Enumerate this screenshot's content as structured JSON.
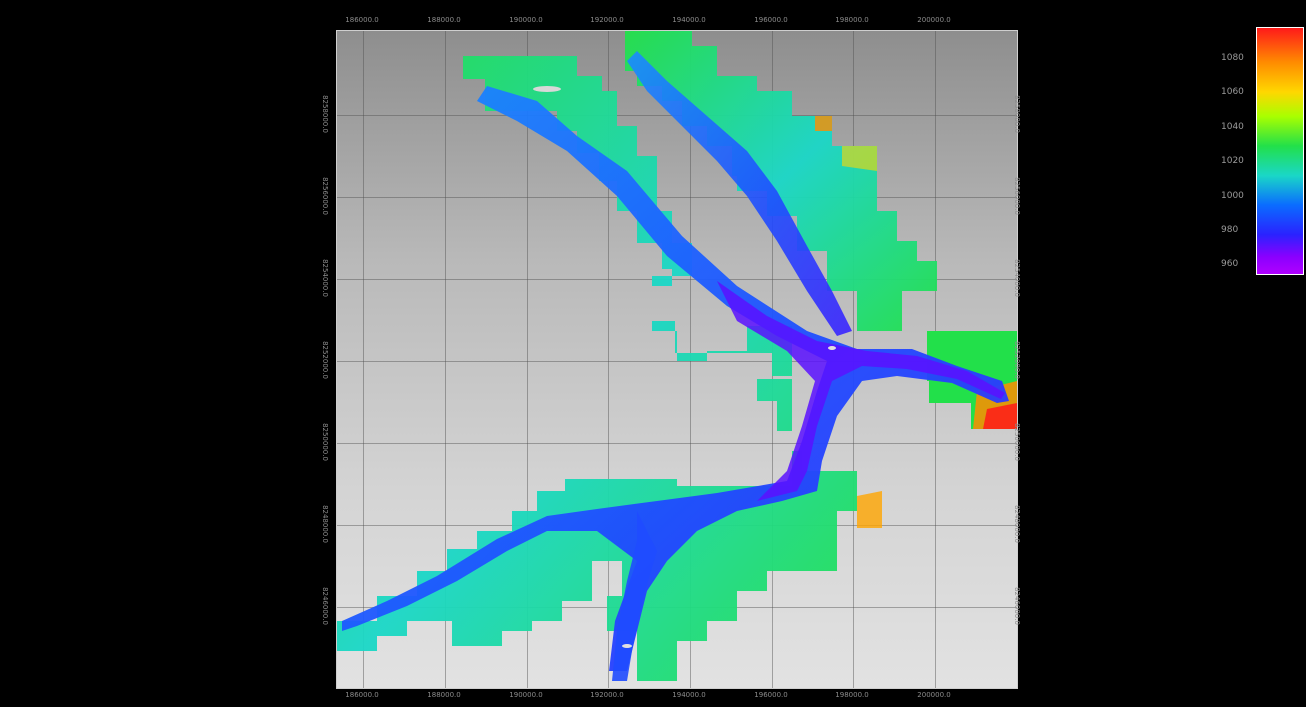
{
  "map": {
    "x_ticks": [
      "186000.0",
      "188000.0",
      "190000.0",
      "192000.0",
      "194000.0",
      "196000.0",
      "198000.0",
      "200000.0"
    ],
    "y_ticks": [
      "8258000.0",
      "8256000.0",
      "8254000.0",
      "8252000.0",
      "8250000.0",
      "8248000.0",
      "8246000.0"
    ]
  },
  "colorbar": {
    "labels": [
      "1080",
      "1060",
      "1040",
      "1020",
      "1000",
      "980",
      "960"
    ],
    "colors": [
      "#ff1a1a",
      "#ff8c00",
      "#ffd700",
      "#a8ff00",
      "#22e04a",
      "#1ad7c7",
      "#0a6cff",
      "#2a22ff",
      "#8a00ff"
    ]
  }
}
